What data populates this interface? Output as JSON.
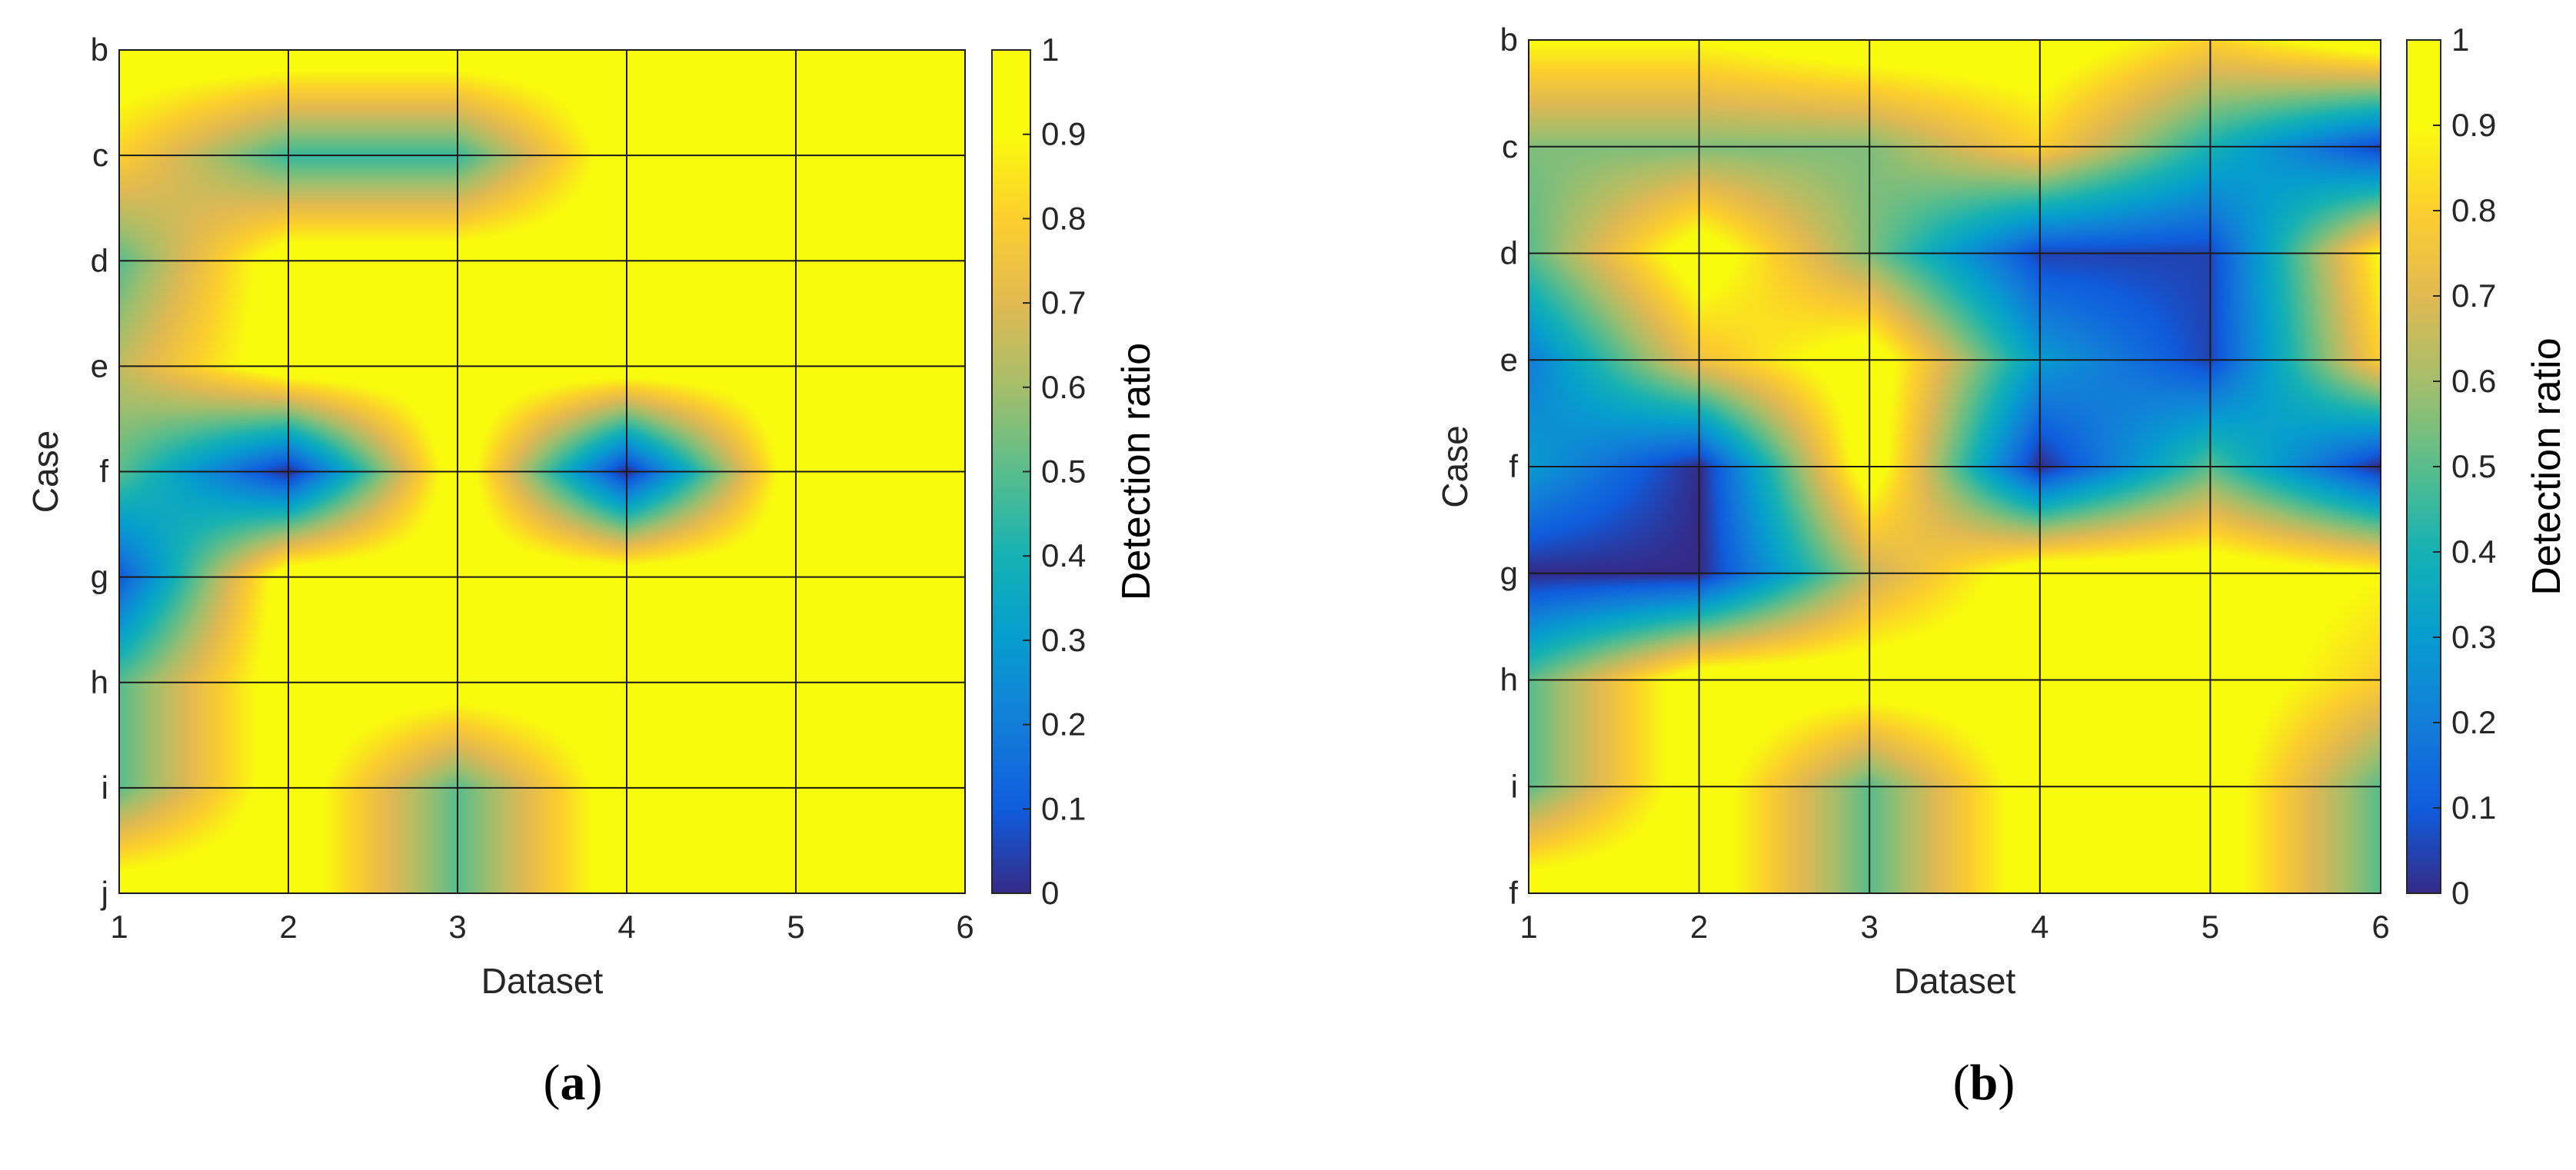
{
  "chart_data": [
    {
      "type": "heatmap",
      "panel_label": "(a)",
      "panel_letter": "a",
      "xlabel": "Dataset",
      "ylabel": "Case",
      "colorbar_label": "Detection ratio",
      "x": [
        1,
        2,
        3,
        4,
        5,
        6
      ],
      "y_categories": [
        "b",
        "c",
        "d",
        "e",
        "f",
        "g",
        "h",
        "i",
        "j"
      ],
      "clim": [
        0,
        1
      ],
      "colorbar_ticks": [
        "0",
        "0.1",
        "0.2",
        "0.3",
        "0.4",
        "0.5",
        "0.6",
        "0.7",
        "0.8",
        "0.9",
        "1"
      ],
      "colormap": "parula",
      "grid": true,
      "z": [
        [
          1.0,
          1.0,
          1.0,
          1.0,
          1.0,
          1.0
        ],
        [
          0.8,
          0.45,
          0.45,
          1.0,
          1.0,
          1.0
        ],
        [
          0.5,
          1.0,
          1.0,
          1.0,
          1.0,
          1.0
        ],
        [
          0.65,
          1.0,
          1.0,
          1.0,
          1.0,
          1.0
        ],
        [
          0.5,
          0.0,
          1.0,
          0.0,
          1.0,
          1.0
        ],
        [
          0.1,
          1.0,
          1.0,
          1.0,
          1.0,
          1.0
        ],
        [
          0.5,
          1.0,
          1.0,
          1.0,
          1.0,
          1.0
        ],
        [
          0.5,
          1.0,
          0.5,
          1.0,
          1.0,
          1.0
        ],
        [
          1.0,
          1.0,
          0.5,
          1.0,
          1.0,
          1.0
        ]
      ]
    },
    {
      "type": "heatmap",
      "panel_label": "(b)",
      "panel_letter": "b",
      "xlabel": "Dataset",
      "ylabel": "Case",
      "colorbar_label": "Detection ratio",
      "x": [
        1,
        2,
        3,
        4,
        5,
        6
      ],
      "y_categories": [
        "b",
        "c",
        "d",
        "e",
        "f",
        "g",
        "h",
        "i",
        "f"
      ],
      "clim": [
        0,
        1
      ],
      "colorbar_ticks": [
        "0",
        "0.1",
        "0.2",
        "0.3",
        "0.4",
        "0.5",
        "0.6",
        "0.7",
        "0.8",
        "0.9",
        "1"
      ],
      "colormap": "parula",
      "grid": true,
      "z": [
        [
          0.9,
          0.9,
          1.0,
          1.0,
          0.8,
          1.0
        ],
        [
          0.55,
          0.55,
          0.55,
          0.8,
          0.4,
          0.05
        ],
        [
          0.5,
          1.0,
          0.55,
          0.05,
          0.05,
          0.9
        ],
        [
          0.2,
          0.75,
          1.0,
          0.3,
          0.05,
          0.8
        ],
        [
          0.3,
          0.0,
          1.0,
          0.0,
          0.5,
          0.0
        ],
        [
          0.0,
          0.0,
          0.65,
          1.0,
          1.0,
          0.9
        ],
        [
          0.5,
          1.0,
          1.0,
          1.0,
          1.0,
          0.8
        ],
        [
          0.5,
          1.0,
          0.5,
          1.0,
          1.0,
          0.5
        ],
        [
          1.0,
          1.0,
          0.5,
          1.0,
          1.0,
          0.5
        ]
      ]
    }
  ]
}
